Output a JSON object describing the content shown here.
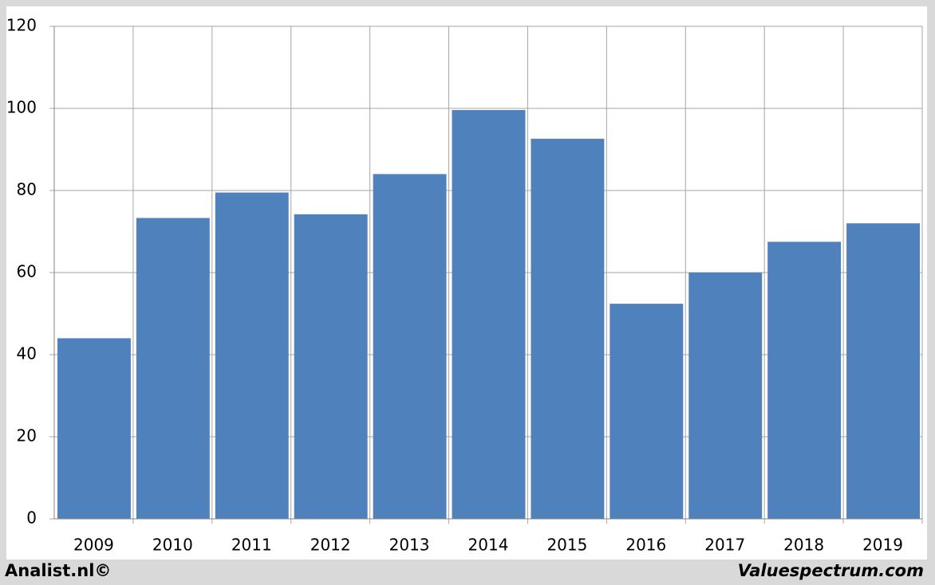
{
  "chart_data": {
    "type": "bar",
    "categories": [
      "2009",
      "2010",
      "2011",
      "2012",
      "2013",
      "2014",
      "2015",
      "2016",
      "2017",
      "2018",
      "2019"
    ],
    "values": [
      44,
      73.3,
      79.5,
      74.2,
      84,
      99.6,
      92.6,
      52.4,
      60,
      67.5,
      72
    ],
    "color": "#4f81bd",
    "ylim": [
      0,
      120
    ],
    "yticks": [
      0,
      20,
      40,
      60,
      80,
      100,
      120
    ],
    "grid": true,
    "source_left": "Analist.nl©",
    "source_right": "Valuespectrum.com"
  }
}
